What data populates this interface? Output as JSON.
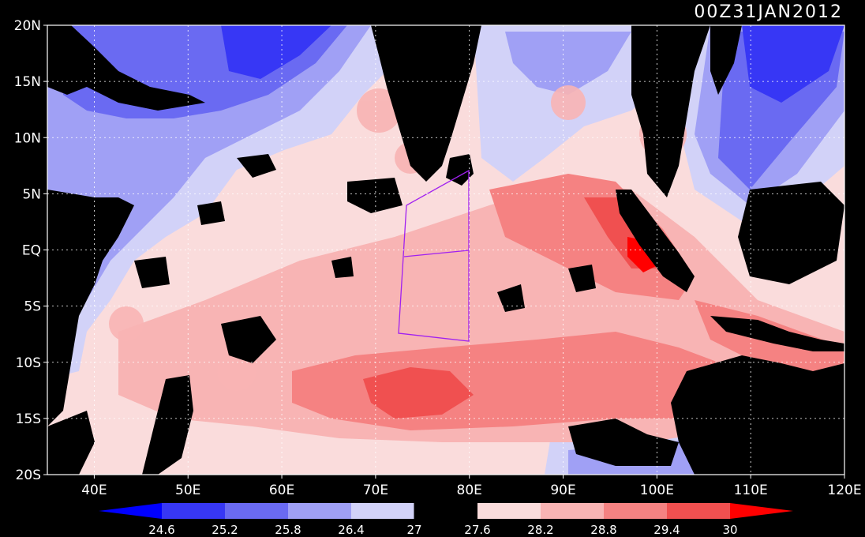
{
  "title": "00Z31JAN2012",
  "axes": {
    "lat_labels": [
      "20N",
      "15N",
      "10N",
      "5N",
      "EQ",
      "5S",
      "10S",
      "15S",
      "20S"
    ],
    "lon_labels": [
      "40E",
      "50E",
      "60E",
      "70E",
      "80E",
      "90E",
      "100E",
      "110E",
      "120E"
    ],
    "lat_range": [
      -20,
      20
    ],
    "lon_range": [
      35,
      120
    ],
    "grid": "dotted"
  },
  "colorbar": {
    "levels": [
      "24.6",
      "25.2",
      "25.8",
      "26.4",
      "27",
      "27.6",
      "28.2",
      "28.8",
      "29.4",
      "30"
    ],
    "colors": [
      "#0000ff",
      "#3737f5",
      "#6a6af2",
      "#a0a0f5",
      "#d2d2f8",
      "#000000",
      "#fadcdc",
      "#f8b4b4",
      "#f58282",
      "#f05050",
      "#ff0000"
    ]
  },
  "land_color": "#000000",
  "box_color": "#a020f0"
}
